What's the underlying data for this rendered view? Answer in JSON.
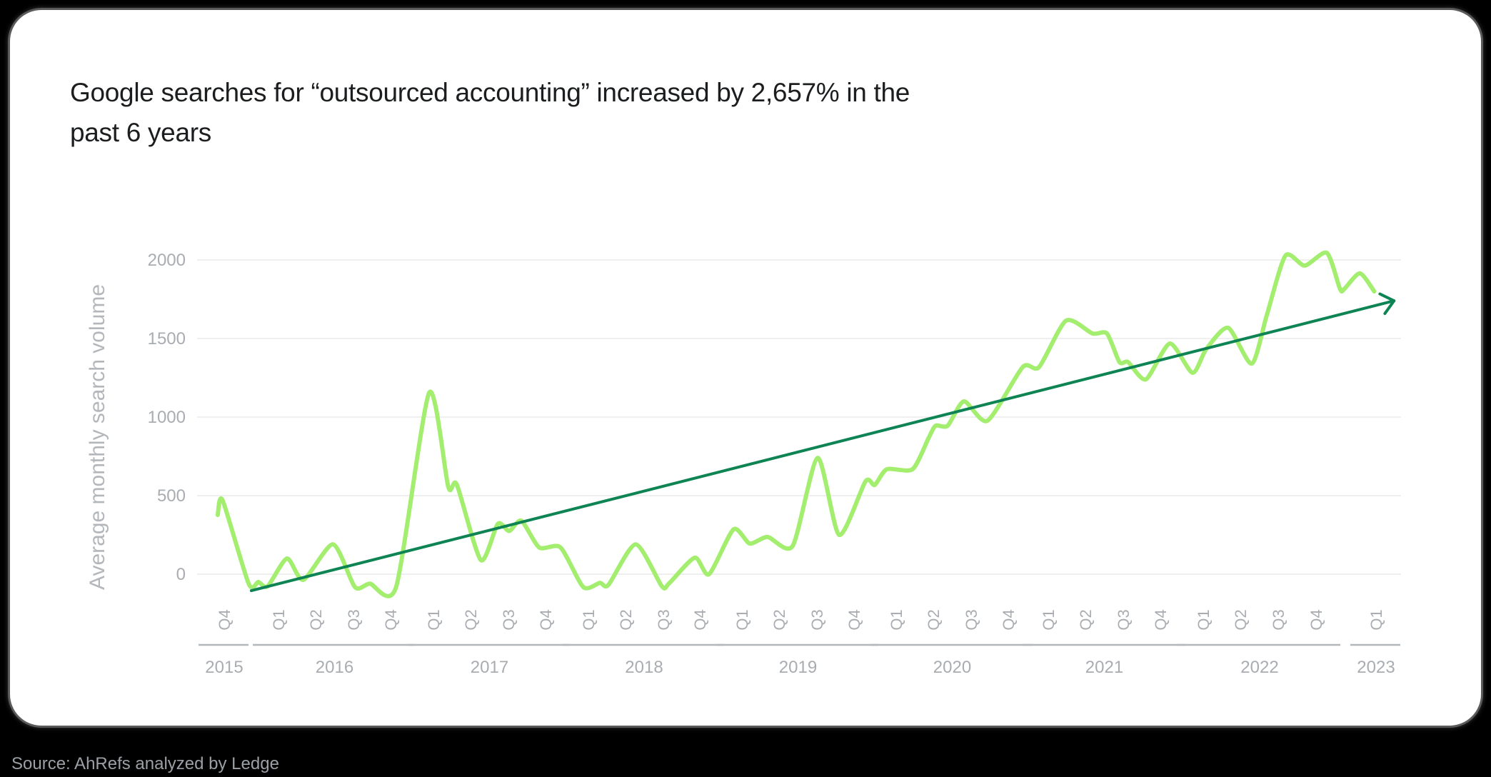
{
  "title": "Google searches for “outsourced accounting” increased by 2,657% in the past 6 years",
  "source": "Source: AhRefs analyzed by Ledge",
  "colors": {
    "series": "#a3ee6f",
    "trend": "#0e8454",
    "grid": "#efefef",
    "axis_text": "#a9adb1",
    "year_rule": "#b3b7bb"
  },
  "chart_data": {
    "type": "line",
    "title": "Google searches for “outsourced accounting” increased by 2,657% in the past 6 years",
    "xlabel": "",
    "ylabel": "Average monthly search volume",
    "ylim": [
      -150,
      2100
    ],
    "yticks": [
      0,
      500,
      1000,
      1500,
      2000
    ],
    "grid": true,
    "legend": "none",
    "x_groups": [
      {
        "year": "2015",
        "quarters": [
          "Q4"
        ]
      },
      {
        "year": "2016",
        "quarters": [
          "Q1",
          "Q2",
          "Q3",
          "Q4"
        ]
      },
      {
        "year": "2017",
        "quarters": [
          "Q1",
          "Q2",
          "Q3",
          "Q4"
        ]
      },
      {
        "year": "2018",
        "quarters": [
          "Q1",
          "Q2",
          "Q3",
          "Q4"
        ]
      },
      {
        "year": "2019",
        "quarters": [
          "Q1",
          "Q2",
          "Q3",
          "Q4"
        ]
      },
      {
        "year": "2020",
        "quarters": [
          "Q1",
          "Q2",
          "Q3",
          "Q4"
        ]
      },
      {
        "year": "2021",
        "quarters": [
          "Q1",
          "Q2",
          "Q3",
          "Q4"
        ]
      },
      {
        "year": "2022",
        "quarters": [
          "Q1",
          "Q2",
          "Q3",
          "Q4"
        ]
      },
      {
        "year": "2023",
        "quarters": [
          "Q1"
        ]
      }
    ],
    "x_note": "x values are fractional quarter indices: 0 = 2015 Q4, 1 = 2016 Q1, ..., 29 = 2023 Q1",
    "series": [
      {
        "name": "Average monthly search volume",
        "points": [
          [
            -0.12,
            377
          ],
          [
            -0.03,
            470
          ],
          [
            0.45,
            -60
          ],
          [
            0.63,
            -50
          ],
          [
            0.8,
            -77
          ],
          [
            1.23,
            100
          ],
          [
            1.67,
            -36
          ],
          [
            2.46,
            190
          ],
          [
            3.04,
            -82
          ],
          [
            3.44,
            -60
          ],
          [
            4.13,
            -80
          ],
          [
            4.9,
            1155
          ],
          [
            5.4,
            555
          ],
          [
            5.63,
            570
          ],
          [
            6.27,
            90
          ],
          [
            6.72,
            320
          ],
          [
            7.02,
            275
          ],
          [
            7.35,
            340
          ],
          [
            7.83,
            170
          ],
          [
            8.35,
            170
          ],
          [
            8.88,
            -82
          ],
          [
            9.31,
            -55
          ],
          [
            9.54,
            -68
          ],
          [
            10.27,
            190
          ],
          [
            10.96,
            -77
          ],
          [
            11.15,
            -60
          ],
          [
            11.86,
            105
          ],
          [
            12.22,
            0
          ],
          [
            12.8,
            285
          ],
          [
            13.21,
            195
          ],
          [
            13.69,
            237
          ],
          [
            14.36,
            180
          ],
          [
            15.02,
            740
          ],
          [
            15.6,
            250
          ],
          [
            16.27,
            590
          ],
          [
            16.49,
            568
          ],
          [
            16.78,
            668
          ],
          [
            17.44,
            668
          ],
          [
            17.87,
            865
          ],
          [
            18.06,
            945
          ],
          [
            18.38,
            945
          ],
          [
            18.81,
            1100
          ],
          [
            19.44,
            977
          ],
          [
            20.36,
            1318
          ],
          [
            20.77,
            1318
          ],
          [
            21.48,
            1614
          ],
          [
            22.19,
            1532
          ],
          [
            22.57,
            1532
          ],
          [
            22.9,
            1350
          ],
          [
            23.13,
            1350
          ],
          [
            23.61,
            1240
          ],
          [
            24.22,
            1468
          ],
          [
            24.75,
            1282
          ],
          [
            25.08,
            1432
          ],
          [
            25.67,
            1568
          ],
          [
            26.3,
            1340
          ],
          [
            26.7,
            1650
          ],
          [
            27.19,
            2027
          ],
          [
            27.7,
            1964
          ],
          [
            28.18,
            2045
          ],
          [
            28.4,
            1815
          ],
          [
            28.47,
            1815
          ],
          [
            28.73,
            1915
          ],
          [
            28.97,
            1800
          ]
        ]
      },
      {
        "name": "Trend",
        "type": "arrow",
        "points": [
          [
            0.5,
            -105
          ],
          [
            29.3,
            1740
          ]
        ]
      }
    ],
    "annotations": [
      "2,657% increase"
    ]
  }
}
